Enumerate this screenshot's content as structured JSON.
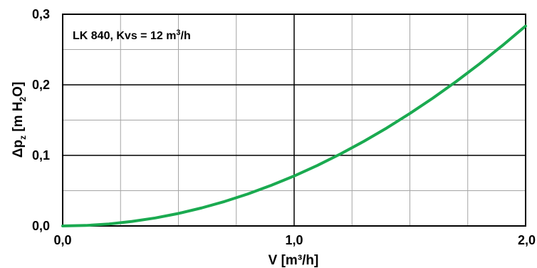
{
  "chart_data": {
    "type": "line",
    "xlabel": "V [m³/h]",
    "ylabel": "Δpz [m H2O]",
    "ylabel_parts": {
      "main": "Δp",
      "sub1": "z",
      "mid": " [m H",
      "sub2": "2",
      "end": "O]"
    },
    "xlim": [
      0,
      2
    ],
    "ylim": [
      0,
      0.3
    ],
    "x_tick_labels": [
      "0,0",
      "1,0",
      "2,0"
    ],
    "x_tick_values": [
      0,
      1,
      2
    ],
    "y_tick_labels": [
      "0,0",
      "0,1",
      "0,2",
      "0,3"
    ],
    "y_tick_values": [
      0,
      0.1,
      0.2,
      0.3
    ],
    "x_minor_grid": [
      0.25,
      0.5,
      0.75,
      1.25,
      1.5,
      1.75
    ],
    "y_minor_grid": [
      0.05,
      0.15,
      0.25
    ],
    "grid": true,
    "annotation": "LK 840, Kvs = 12 m³/h",
    "annotation_parts": {
      "main": "LK 840, Kvs = 12 m",
      "sup": "3",
      "end": "/h"
    },
    "series": [
      {
        "color": "#1aaa50",
        "x": [
          0,
          0.1,
          0.2,
          0.3,
          0.4,
          0.5,
          0.6,
          0.7,
          0.8,
          0.9,
          1.0,
          1.1,
          1.2,
          1.3,
          1.4,
          1.5,
          1.6,
          1.7,
          1.8,
          1.9,
          2.0
        ],
        "y": [
          0.0,
          0.0007,
          0.0028,
          0.0064,
          0.0113,
          0.0177,
          0.0255,
          0.0347,
          0.0453,
          0.0574,
          0.0708,
          0.0857,
          0.102,
          0.1197,
          0.1388,
          0.1594,
          0.1813,
          0.2047,
          0.2295,
          0.2557,
          0.2833
        ]
      }
    ]
  }
}
